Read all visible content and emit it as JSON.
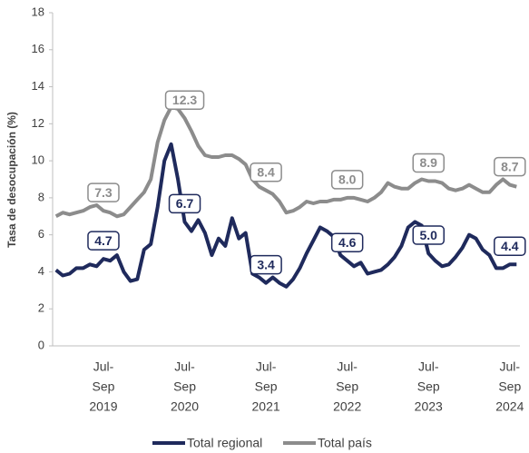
{
  "chart_data": {
    "type": "line",
    "y_label": "Tasa de desocupación (%)",
    "categories": [
      null,
      null,
      null,
      null,
      null,
      null,
      null,
      [
        "Jul-",
        "Sep",
        "2019"
      ],
      null,
      null,
      null,
      null,
      null,
      null,
      null,
      null,
      null,
      null,
      null,
      [
        "Jul-",
        "Sep",
        "2020"
      ],
      null,
      null,
      null,
      null,
      null,
      null,
      null,
      null,
      null,
      null,
      null,
      [
        "Jul-",
        "Sep",
        "2021"
      ],
      null,
      null,
      null,
      null,
      null,
      null,
      null,
      null,
      null,
      null,
      null,
      [
        "Jul-",
        "Sep",
        "2022"
      ],
      null,
      null,
      null,
      null,
      null,
      null,
      null,
      null,
      null,
      null,
      null,
      [
        "Jul-",
        "Sep",
        "2023"
      ],
      null,
      null,
      null,
      null,
      null,
      null,
      null,
      null,
      null,
      null,
      null,
      [
        "Jul-",
        "Sep",
        "2024"
      ],
      null
    ],
    "series": [
      {
        "name": "Total regional",
        "color": "#1f2a5c",
        "values": [
          4.1,
          3.8,
          3.9,
          4.2,
          4.2,
          4.4,
          4.3,
          4.7,
          4.6,
          4.9,
          4.0,
          3.5,
          3.6,
          5.2,
          5.5,
          7.5,
          10.0,
          10.9,
          9.0,
          6.7,
          6.2,
          6.8,
          6.1,
          4.9,
          5.8,
          5.4,
          6.9,
          5.8,
          6.1,
          3.9,
          3.7,
          3.4,
          3.7,
          3.4,
          3.2,
          3.6,
          4.2,
          5.0,
          5.7,
          6.4,
          6.2,
          5.9,
          4.9,
          4.6,
          4.3,
          4.5,
          3.9,
          4.0,
          4.1,
          4.4,
          4.8,
          5.4,
          6.4,
          6.7,
          6.5,
          5.0,
          4.6,
          4.3,
          4.4,
          4.8,
          5.3,
          6.0,
          5.8,
          5.2,
          4.9,
          4.2,
          4.2,
          4.4,
          4.4
        ],
        "value_labels": [
          null,
          null,
          null,
          null,
          null,
          null,
          null,
          "4.7",
          null,
          null,
          null,
          null,
          null,
          null,
          null,
          null,
          null,
          null,
          null,
          "6.7",
          null,
          null,
          null,
          null,
          null,
          null,
          null,
          null,
          null,
          null,
          null,
          "3.4",
          null,
          null,
          null,
          null,
          null,
          null,
          null,
          null,
          null,
          null,
          null,
          "4.6",
          null,
          null,
          null,
          null,
          null,
          null,
          null,
          null,
          null,
          null,
          null,
          "5.0",
          null,
          null,
          null,
          null,
          null,
          null,
          null,
          null,
          null,
          null,
          null,
          "4.4",
          null
        ]
      },
      {
        "name": "Total país",
        "color": "#8c8c8c",
        "values": [
          7.0,
          7.2,
          7.1,
          7.2,
          7.3,
          7.5,
          7.6,
          7.3,
          7.2,
          7.0,
          7.1,
          7.5,
          7.9,
          8.3,
          9.0,
          11.0,
          12.2,
          12.9,
          12.8,
          12.3,
          11.6,
          10.8,
          10.3,
          10.2,
          10.2,
          10.3,
          10.3,
          10.1,
          9.8,
          9.0,
          8.6,
          8.4,
          8.2,
          7.8,
          7.2,
          7.3,
          7.5,
          7.8,
          7.7,
          7.8,
          7.8,
          7.9,
          7.9,
          8.0,
          8.0,
          7.9,
          7.8,
          8.0,
          8.3,
          8.8,
          8.6,
          8.5,
          8.5,
          8.8,
          9.0,
          8.9,
          8.9,
          8.8,
          8.5,
          8.4,
          8.5,
          8.7,
          8.5,
          8.3,
          8.3,
          8.7,
          9.0,
          8.7,
          8.6
        ],
        "value_labels": [
          null,
          null,
          null,
          null,
          null,
          null,
          null,
          "7.3",
          null,
          null,
          null,
          null,
          null,
          null,
          null,
          null,
          null,
          null,
          null,
          "12.3",
          null,
          null,
          null,
          null,
          null,
          null,
          null,
          null,
          null,
          null,
          null,
          "8.4",
          null,
          null,
          null,
          null,
          null,
          null,
          null,
          null,
          null,
          null,
          null,
          "8.0",
          null,
          null,
          null,
          null,
          null,
          null,
          null,
          null,
          null,
          null,
          null,
          "8.9",
          null,
          null,
          null,
          null,
          null,
          null,
          null,
          null,
          null,
          null,
          null,
          "8.7",
          null
        ]
      }
    ],
    "ylim": [
      0,
      18
    ],
    "yticks": [
      0,
      2,
      4,
      6,
      8,
      10,
      12,
      14,
      16,
      18
    ]
  }
}
